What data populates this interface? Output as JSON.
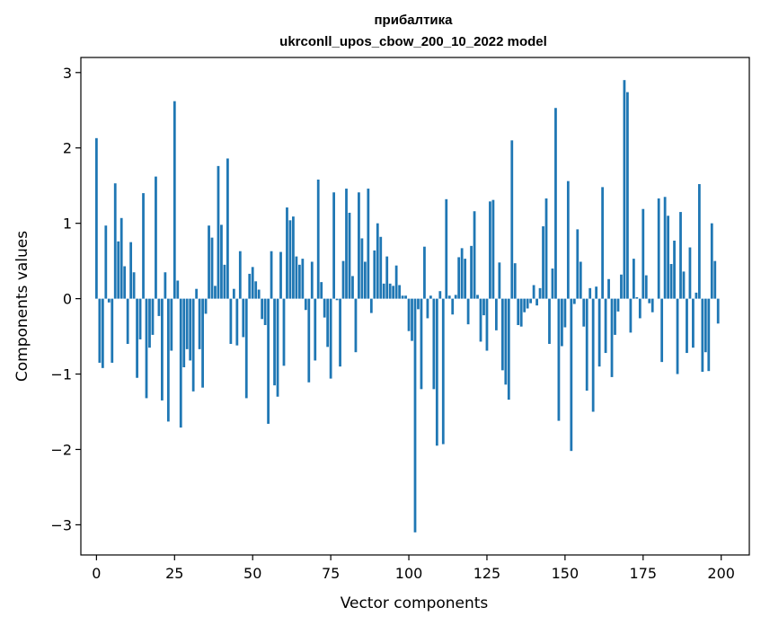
{
  "chart_data": {
    "type": "bar",
    "title": "прибалтика",
    "subtitle": "ukrconll_upos_cbow_200_10_2022 model",
    "xlabel": "Vector components",
    "ylabel": "Components values",
    "xlim": [
      -5,
      209
    ],
    "ylim": [
      -3.4,
      3.2
    ],
    "xticks": [
      0,
      25,
      50,
      75,
      100,
      125,
      150,
      175,
      200
    ],
    "yticks": [
      -3,
      -2,
      -1,
      0,
      1,
      2,
      3
    ],
    "bar_color": "#1f77b4",
    "x": [
      0,
      1,
      2,
      3,
      4,
      5,
      6,
      7,
      8,
      9,
      10,
      11,
      12,
      13,
      14,
      15,
      16,
      17,
      18,
      19,
      20,
      21,
      22,
      23,
      24,
      25,
      26,
      27,
      28,
      29,
      30,
      31,
      32,
      33,
      34,
      35,
      36,
      37,
      38,
      39,
      40,
      41,
      42,
      43,
      44,
      45,
      46,
      47,
      48,
      49,
      50,
      51,
      52,
      53,
      54,
      55,
      56,
      57,
      58,
      59,
      60,
      61,
      62,
      63,
      64,
      65,
      66,
      67,
      68,
      69,
      70,
      71,
      72,
      73,
      74,
      75,
      76,
      77,
      78,
      79,
      80,
      81,
      82,
      83,
      84,
      85,
      86,
      87,
      88,
      89,
      90,
      91,
      92,
      93,
      94,
      95,
      96,
      97,
      98,
      99,
      100,
      101,
      102,
      103,
      104,
      105,
      106,
      107,
      108,
      109,
      110,
      111,
      112,
      113,
      114,
      115,
      116,
      117,
      118,
      119,
      120,
      121,
      122,
      123,
      124,
      125,
      126,
      127,
      128,
      129,
      130,
      131,
      132,
      133,
      134,
      135,
      136,
      137,
      138,
      139,
      140,
      141,
      142,
      143,
      144,
      145,
      146,
      147,
      148,
      149,
      150,
      151,
      152,
      153,
      154,
      155,
      156,
      157,
      158,
      159,
      160,
      161,
      162,
      163,
      164,
      165,
      166,
      167,
      168,
      169,
      170,
      171,
      172,
      173,
      174,
      175,
      176,
      177,
      178,
      179,
      180,
      181,
      182,
      183,
      184,
      185,
      186,
      187,
      188,
      189,
      190,
      191,
      192,
      193,
      194,
      195,
      196,
      197,
      198,
      199
    ],
    "values": [
      2.13,
      -0.85,
      -0.92,
      0.97,
      -0.05,
      -0.85,
      1.53,
      0.76,
      1.07,
      0.43,
      -0.6,
      0.75,
      0.35,
      -1.05,
      -0.54,
      1.4,
      -1.32,
      -0.65,
      -0.48,
      1.62,
      -0.23,
      -1.35,
      0.35,
      -1.63,
      -0.69,
      2.62,
      0.24,
      -1.71,
      -0.91,
      -0.67,
      -0.82,
      -1.23,
      0.13,
      -0.67,
      -1.18,
      -0.2,
      0.97,
      0.81,
      0.17,
      1.76,
      0.98,
      0.45,
      1.86,
      -0.6,
      0.13,
      -0.62,
      0.63,
      -0.51,
      -1.32,
      0.33,
      0.42,
      0.23,
      0.12,
      -0.27,
      -0.35,
      -1.66,
      0.63,
      -1.15,
      -1.3,
      0.62,
      -0.89,
      1.21,
      1.04,
      1.09,
      0.56,
      0.45,
      0.53,
      -0.15,
      -1.11,
      0.49,
      -0.82,
      1.58,
      0.22,
      -0.25,
      -0.64,
      -1.06,
      1.41,
      -0.02,
      -0.9,
      0.5,
      1.46,
      1.14,
      0.3,
      -0.71,
      1.41,
      0.8,
      0.49,
      1.46,
      -0.19,
      0.64,
      1.0,
      0.82,
      0.2,
      0.56,
      0.2,
      0.17,
      0.44,
      0.18,
      0.04,
      0.04,
      -0.43,
      -0.56,
      -3.1,
      -0.14,
      -1.2,
      0.69,
      -0.26,
      0.04,
      -1.2,
      -1.95,
      0.1,
      -1.93,
      1.32,
      0.04,
      -0.21,
      0.05,
      0.55,
      0.67,
      0.53,
      -0.34,
      0.7,
      1.16,
      0.05,
      -0.57,
      -0.22,
      -0.69,
      1.29,
      1.31,
      -0.42,
      0.48,
      -0.95,
      -1.14,
      -1.34,
      2.1,
      0.47,
      -0.35,
      -0.37,
      -0.18,
      -0.13,
      -0.06,
      0.18,
      -0.09,
      0.14,
      0.96,
      1.33,
      -0.6,
      0.4,
      2.53,
      -1.62,
      -0.63,
      -0.38,
      1.56,
      -2.02,
      -0.07,
      0.92,
      0.49,
      -0.37,
      -1.22,
      0.14,
      -1.5,
      0.16,
      -0.9,
      1.48,
      -0.72,
      0.26,
      -1.04,
      -0.48,
      -0.17,
      0.32,
      2.9,
      2.74,
      -0.45,
      0.53,
      0.02,
      -0.26,
      1.19,
      0.31,
      -0.06,
      -0.18,
      0.0,
      1.33,
      -0.84,
      1.35,
      1.1,
      0.46,
      0.77,
      -1.0,
      1.15,
      0.36,
      -0.72,
      0.68,
      -0.65,
      0.08,
      1.52,
      -0.97,
      -0.71,
      -0.96,
      1.0,
      0.5,
      -0.33
    ]
  }
}
